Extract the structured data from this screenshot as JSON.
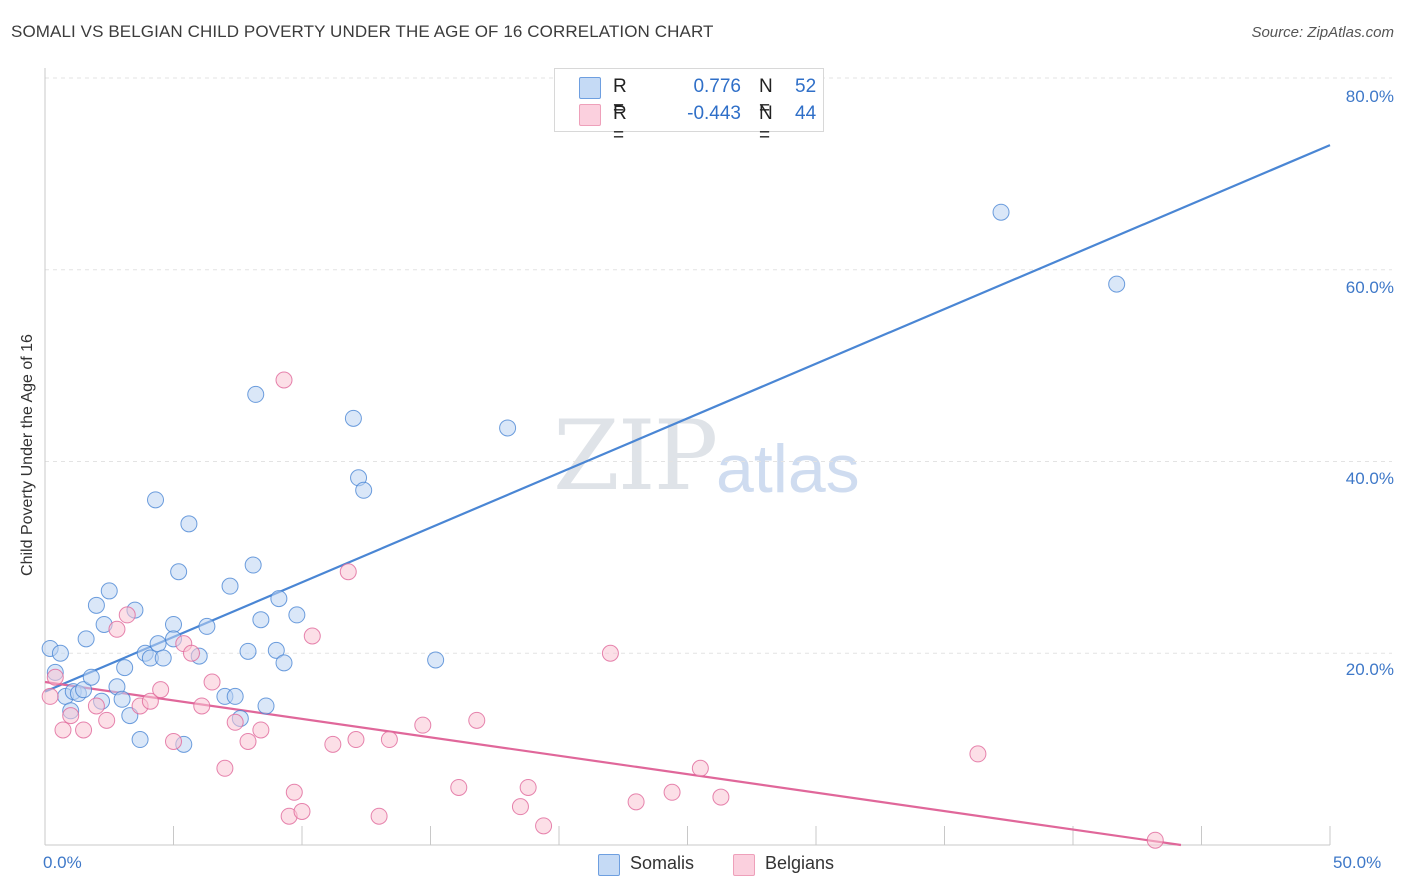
{
  "header": {
    "title": "SOMALI VS BELGIAN CHILD POVERTY UNDER THE AGE OF 16 CORRELATION CHART",
    "source": "Source: ZipAtlas.com"
  },
  "watermark": {
    "zip": "ZIP",
    "atlas": "atlas"
  },
  "legend": {
    "rows": [
      {
        "r_label": "R =",
        "r_value": "0.776",
        "n_label": "N =",
        "n_value": "52",
        "color": "#aac8f0"
      },
      {
        "r_label": "R =",
        "r_value": "-0.443",
        "n_label": "N =",
        "n_value": "44",
        "color": "#f7b8cc"
      }
    ]
  },
  "bottom_legend": {
    "somalis": "Somalis",
    "belgians": "Belgians"
  },
  "chart_data": {
    "type": "scatter",
    "title": "SOMALI VS BELGIAN CHILD POVERTY UNDER THE AGE OF 16 CORRELATION CHART",
    "xlabel": "",
    "ylabel": "Child Poverty Under the Age of 16",
    "xlim": [
      0,
      50
    ],
    "ylim": [
      0,
      80
    ],
    "x_tick_labels": [
      "0.0%",
      "50.0%"
    ],
    "y_tick_labels": [
      "20.0%",
      "40.0%",
      "60.0%",
      "80.0%"
    ],
    "y_ticks": [
      20,
      40,
      60,
      80
    ],
    "grid": true,
    "legend_position": "top-center",
    "series": [
      {
        "name": "Somalis",
        "color": "#4a86d4",
        "fill": "#bcd4f3",
        "r": 0.776,
        "n": 52,
        "trend": {
          "x0": 0,
          "y0": 16.0,
          "x1": 50,
          "y1": 73.0
        },
        "points": [
          [
            0.2,
            20.5
          ],
          [
            0.4,
            18.0
          ],
          [
            0.6,
            20.0
          ],
          [
            0.8,
            15.5
          ],
          [
            1.0,
            14.0
          ],
          [
            1.1,
            16.0
          ],
          [
            1.3,
            15.8
          ],
          [
            1.5,
            16.2
          ],
          [
            1.6,
            21.5
          ],
          [
            1.8,
            17.5
          ],
          [
            2.0,
            25.0
          ],
          [
            2.2,
            15.0
          ],
          [
            2.3,
            23.0
          ],
          [
            2.5,
            26.5
          ],
          [
            2.8,
            16.5
          ],
          [
            3.0,
            15.2
          ],
          [
            3.1,
            18.5
          ],
          [
            3.3,
            13.5
          ],
          [
            3.5,
            24.5
          ],
          [
            3.7,
            11.0
          ],
          [
            3.9,
            20.0
          ],
          [
            4.1,
            19.5
          ],
          [
            4.3,
            36.0
          ],
          [
            4.4,
            21.0
          ],
          [
            4.6,
            19.5
          ],
          [
            5.0,
            23.0
          ],
          [
            5.0,
            21.5
          ],
          [
            5.2,
            28.5
          ],
          [
            5.4,
            10.5
          ],
          [
            5.6,
            33.5
          ],
          [
            6.0,
            19.7
          ],
          [
            6.3,
            22.8
          ],
          [
            7.0,
            15.5
          ],
          [
            7.2,
            27.0
          ],
          [
            7.4,
            15.5
          ],
          [
            7.6,
            13.2
          ],
          [
            7.9,
            20.2
          ],
          [
            8.1,
            29.2
          ],
          [
            8.2,
            47.0
          ],
          [
            8.4,
            23.5
          ],
          [
            8.6,
            14.5
          ],
          [
            9.0,
            20.3
          ],
          [
            9.1,
            25.7
          ],
          [
            9.3,
            19.0
          ],
          [
            9.8,
            24.0
          ],
          [
            12.0,
            44.5
          ],
          [
            12.2,
            38.3
          ],
          [
            12.4,
            37.0
          ],
          [
            15.2,
            19.3
          ],
          [
            18.0,
            43.5
          ],
          [
            37.2,
            66.0
          ],
          [
            41.7,
            58.5
          ]
        ]
      },
      {
        "name": "Belgians",
        "color": "#e0679a",
        "fill": "#f9c4d4",
        "r": -0.443,
        "n": 44,
        "trend": {
          "x0": 0,
          "y0": 17.0,
          "x1": 44.2,
          "y1": 0.0
        },
        "points": [
          [
            0.2,
            15.5
          ],
          [
            0.4,
            17.5
          ],
          [
            0.7,
            12.0
          ],
          [
            1.0,
            13.5
          ],
          [
            1.5,
            12.0
          ],
          [
            2.0,
            14.5
          ],
          [
            2.4,
            13.0
          ],
          [
            2.8,
            22.5
          ],
          [
            3.2,
            24.0
          ],
          [
            3.7,
            14.5
          ],
          [
            4.1,
            15.0
          ],
          [
            4.5,
            16.2
          ],
          [
            5.0,
            10.8
          ],
          [
            5.4,
            21.0
          ],
          [
            5.7,
            20.0
          ],
          [
            6.1,
            14.5
          ],
          [
            6.5,
            17.0
          ],
          [
            7.0,
            8.0
          ],
          [
            7.4,
            12.8
          ],
          [
            7.9,
            10.8
          ],
          [
            8.4,
            12.0
          ],
          [
            9.3,
            48.5
          ],
          [
            9.5,
            3.0
          ],
          [
            9.7,
            5.5
          ],
          [
            10.0,
            3.5
          ],
          [
            10.4,
            21.8
          ],
          [
            11.2,
            10.5
          ],
          [
            11.8,
            28.5
          ],
          [
            12.1,
            11.0
          ],
          [
            13.0,
            3.0
          ],
          [
            13.4,
            11.0
          ],
          [
            14.7,
            12.5
          ],
          [
            16.1,
            6.0
          ],
          [
            16.8,
            13.0
          ],
          [
            18.5,
            4.0
          ],
          [
            18.8,
            6.0
          ],
          [
            19.4,
            2.0
          ],
          [
            22.0,
            20.0
          ],
          [
            23.0,
            4.5
          ],
          [
            24.4,
            5.5
          ],
          [
            25.5,
            8.0
          ],
          [
            26.3,
            5.0
          ],
          [
            36.3,
            9.5
          ],
          [
            43.2,
            0.5
          ]
        ]
      }
    ]
  }
}
